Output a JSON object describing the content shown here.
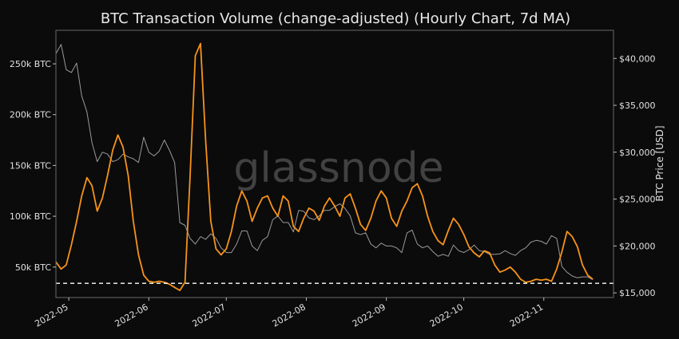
{
  "chart_data": {
    "type": "line",
    "title": "BTC Transaction Volume (change-adjusted) (Hourly Chart, 7d MA)",
    "watermark": "glassnode",
    "x_ticks": [
      "2022-05",
      "2022-06",
      "2022-07",
      "2022-08",
      "2022-09",
      "2022-10",
      "2022-11"
    ],
    "xlim": [
      "2022-04-26",
      "2022-11-28"
    ],
    "y_left": {
      "ticks": [
        50000,
        100000,
        150000,
        200000,
        250000
      ],
      "tick_labels": [
        "50k BTC",
        "100k BTC",
        "150k BTC",
        "200k BTC",
        "250k BTC"
      ],
      "lim": [
        20000,
        283000
      ]
    },
    "y_right": {
      "label": "BTC Price [USD]",
      "ticks": [
        15000,
        20000,
        25000,
        30000,
        35000,
        40000
      ],
      "tick_labels": [
        "$15,000",
        "$20,000",
        "$25,000",
        "$30,000",
        "$35,000",
        "$40,000"
      ],
      "lim": [
        14500,
        43000
      ]
    },
    "reference_line": {
      "axis": "left",
      "value": 34000,
      "style": "dashed",
      "color": "#ffffff"
    },
    "series": [
      {
        "axis": "left",
        "color": "#f7931a",
        "x": [
          "2022-04-26",
          "2022-04-28",
          "2022-04-30",
          "2022-05-02",
          "2022-05-04",
          "2022-05-06",
          "2022-05-08",
          "2022-05-10",
          "2022-05-12",
          "2022-05-14",
          "2022-05-16",
          "2022-05-18",
          "2022-05-20",
          "2022-05-22",
          "2022-05-24",
          "2022-05-26",
          "2022-05-28",
          "2022-05-30",
          "2022-06-01",
          "2022-06-03",
          "2022-06-05",
          "2022-06-07",
          "2022-06-09",
          "2022-06-11",
          "2022-06-13",
          "2022-06-15",
          "2022-06-17",
          "2022-06-19",
          "2022-06-21",
          "2022-06-23",
          "2022-06-25",
          "2022-06-27",
          "2022-06-29",
          "2022-07-01",
          "2022-07-03",
          "2022-07-05",
          "2022-07-07",
          "2022-07-09",
          "2022-07-11",
          "2022-07-13",
          "2022-07-15",
          "2022-07-17",
          "2022-07-19",
          "2022-07-21",
          "2022-07-23",
          "2022-07-25",
          "2022-07-27",
          "2022-07-29",
          "2022-07-31",
          "2022-08-02",
          "2022-08-04",
          "2022-08-06",
          "2022-08-08",
          "2022-08-10",
          "2022-08-12",
          "2022-08-14",
          "2022-08-16",
          "2022-08-18",
          "2022-08-20",
          "2022-08-22",
          "2022-08-24",
          "2022-08-26",
          "2022-08-28",
          "2022-08-30",
          "2022-09-01",
          "2022-09-03",
          "2022-09-05",
          "2022-09-07",
          "2022-09-09",
          "2022-09-11",
          "2022-09-13",
          "2022-09-15",
          "2022-09-17",
          "2022-09-19",
          "2022-09-21",
          "2022-09-23",
          "2022-09-25",
          "2022-09-27",
          "2022-09-29",
          "2022-10-01",
          "2022-10-03",
          "2022-10-05",
          "2022-10-07",
          "2022-10-09",
          "2022-10-11",
          "2022-10-13",
          "2022-10-15",
          "2022-10-17",
          "2022-10-19",
          "2022-10-21",
          "2022-10-23",
          "2022-10-25",
          "2022-10-27",
          "2022-10-29",
          "2022-10-31",
          "2022-11-02",
          "2022-11-04",
          "2022-11-06",
          "2022-11-08",
          "2022-11-10",
          "2022-11-12",
          "2022-11-14",
          "2022-11-16",
          "2022-11-18",
          "2022-11-20"
        ],
        "values": [
          55000,
          48000,
          52000,
          72000,
          95000,
          120000,
          138000,
          130000,
          105000,
          118000,
          140000,
          165000,
          180000,
          168000,
          140000,
          95000,
          62000,
          42000,
          36000,
          35000,
          36000,
          35000,
          33000,
          30000,
          27000,
          35000,
          140000,
          258000,
          270000,
          175000,
          95000,
          68000,
          62000,
          68000,
          85000,
          110000,
          125000,
          115000,
          95000,
          108000,
          118000,
          120000,
          108000,
          100000,
          120000,
          115000,
          90000,
          85000,
          98000,
          108000,
          105000,
          96000,
          110000,
          118000,
          110000,
          100000,
          118000,
          122000,
          108000,
          92000,
          86000,
          98000,
          115000,
          125000,
          118000,
          98000,
          90000,
          105000,
          115000,
          128000,
          132000,
          120000,
          100000,
          85000,
          76000,
          72000,
          86000,
          98000,
          92000,
          82000,
          70000,
          64000,
          60000,
          66000,
          64000,
          52000,
          45000,
          47000,
          50000,
          45000,
          38000,
          35000,
          36000,
          38000,
          37000,
          38000,
          36000,
          48000,
          65000,
          85000,
          80000,
          70000,
          52000,
          42000,
          38000
        ]
      },
      {
        "axis": "right",
        "color": "#9a9a9a",
        "x": [
          "2022-04-26",
          "2022-04-28",
          "2022-04-30",
          "2022-05-02",
          "2022-05-04",
          "2022-05-06",
          "2022-05-08",
          "2022-05-10",
          "2022-05-12",
          "2022-05-14",
          "2022-05-16",
          "2022-05-18",
          "2022-05-20",
          "2022-05-22",
          "2022-05-24",
          "2022-05-26",
          "2022-05-28",
          "2022-05-30",
          "2022-06-01",
          "2022-06-03",
          "2022-06-05",
          "2022-06-07",
          "2022-06-09",
          "2022-06-11",
          "2022-06-13",
          "2022-06-15",
          "2022-06-17",
          "2022-06-19",
          "2022-06-21",
          "2022-06-23",
          "2022-06-25",
          "2022-06-27",
          "2022-06-29",
          "2022-07-01",
          "2022-07-03",
          "2022-07-05",
          "2022-07-07",
          "2022-07-09",
          "2022-07-11",
          "2022-07-13",
          "2022-07-15",
          "2022-07-17",
          "2022-07-19",
          "2022-07-21",
          "2022-07-23",
          "2022-07-25",
          "2022-07-27",
          "2022-07-29",
          "2022-07-31",
          "2022-08-02",
          "2022-08-04",
          "2022-08-06",
          "2022-08-08",
          "2022-08-10",
          "2022-08-12",
          "2022-08-14",
          "2022-08-16",
          "2022-08-18",
          "2022-08-20",
          "2022-08-22",
          "2022-08-24",
          "2022-08-26",
          "2022-08-28",
          "2022-08-30",
          "2022-09-01",
          "2022-09-03",
          "2022-09-05",
          "2022-09-07",
          "2022-09-09",
          "2022-09-11",
          "2022-09-13",
          "2022-09-15",
          "2022-09-17",
          "2022-09-19",
          "2022-09-21",
          "2022-09-23",
          "2022-09-25",
          "2022-09-27",
          "2022-09-29",
          "2022-10-01",
          "2022-10-03",
          "2022-10-05",
          "2022-10-07",
          "2022-10-09",
          "2022-10-11",
          "2022-10-13",
          "2022-10-15",
          "2022-10-17",
          "2022-10-19",
          "2022-10-21",
          "2022-10-23",
          "2022-10-25",
          "2022-10-27",
          "2022-10-29",
          "2022-10-31",
          "2022-11-02",
          "2022-11-04",
          "2022-11-06",
          "2022-11-08",
          "2022-11-10",
          "2022-11-12",
          "2022-11-14",
          "2022-11-16",
          "2022-11-18",
          "2022-11-20"
        ],
        "values": [
          40500,
          41500,
          38800,
          38500,
          39500,
          36000,
          34300,
          31000,
          29000,
          30000,
          29800,
          29000,
          29200,
          29800,
          29500,
          29300,
          28900,
          31600,
          30000,
          29600,
          30100,
          31300,
          30200,
          28900,
          22500,
          22200,
          20800,
          20200,
          21000,
          20700,
          21300,
          20800,
          19800,
          19300,
          19300,
          20200,
          21600,
          21600,
          20000,
          19500,
          20600,
          21000,
          22800,
          23200,
          22500,
          22500,
          21500,
          23800,
          23700,
          23000,
          22800,
          23200,
          23800,
          23800,
          24200,
          24500,
          24000,
          23200,
          21400,
          21200,
          21400,
          20200,
          19800,
          20300,
          20000,
          20000,
          19800,
          19300,
          21400,
          21700,
          20200,
          19800,
          20000,
          19400,
          18900,
          19100,
          18900,
          20100,
          19500,
          19300,
          19600,
          20100,
          19500,
          19400,
          19100,
          19100,
          19150,
          19500,
          19200,
          19000,
          19500,
          19800,
          20400,
          20600,
          20500,
          20200,
          21100,
          20800,
          17800,
          17200,
          16800,
          16600,
          16700,
          16700,
          16400
        ]
      }
    ]
  }
}
